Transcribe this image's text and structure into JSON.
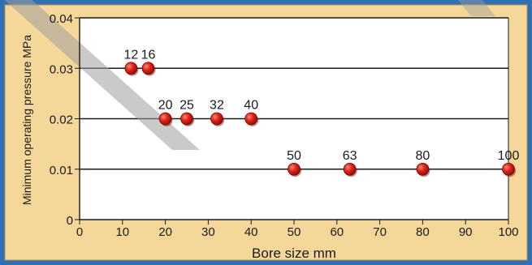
{
  "colors": {
    "frame_blue": "#2f6fb3",
    "panel": "#f6d79a",
    "panel_border": "#b9924a",
    "plot_bg": "#ffffff",
    "grid": "#1a1a1a",
    "marker": "#d11a14",
    "watermark": "#bdbdbd"
  },
  "chart_data": {
    "type": "scatter",
    "title": "",
    "xlabel": "Bore size mm",
    "ylabel": "Minimum operating pressure MPa",
    "xlim": [
      0,
      100
    ],
    "ylim": [
      0,
      0.04
    ],
    "xticks": [
      "0",
      "10",
      "20",
      "30",
      "40",
      "50",
      "60",
      "70",
      "80",
      "90",
      "100"
    ],
    "yticks": [
      "0",
      "0.01",
      "0.02",
      "0.03",
      "0.04"
    ],
    "grid": "horizontal",
    "points": [
      {
        "x": 12,
        "y": 0.03,
        "label": "12"
      },
      {
        "x": 16,
        "y": 0.03,
        "label": "16"
      },
      {
        "x": 20,
        "y": 0.02,
        "label": "20"
      },
      {
        "x": 25,
        "y": 0.02,
        "label": "25"
      },
      {
        "x": 32,
        "y": 0.02,
        "label": "32"
      },
      {
        "x": 40,
        "y": 0.02,
        "label": "40"
      },
      {
        "x": 50,
        "y": 0.01,
        "label": "50"
      },
      {
        "x": 63,
        "y": 0.01,
        "label": "63"
      },
      {
        "x": 80,
        "y": 0.01,
        "label": "80"
      },
      {
        "x": 100,
        "y": 0.01,
        "label": "100"
      }
    ]
  }
}
